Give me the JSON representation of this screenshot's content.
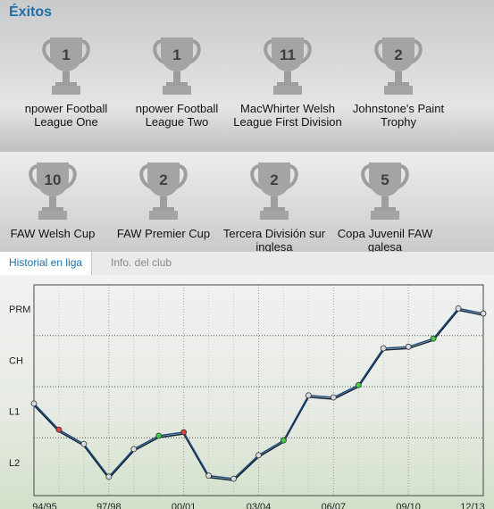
{
  "header": {
    "title": "Éxitos"
  },
  "trophies": [
    {
      "count": 1,
      "name": "npower Football League One"
    },
    {
      "count": 1,
      "name": "npower Football League Two"
    },
    {
      "count": 11,
      "name": "MacWhirter Welsh League First Division"
    },
    {
      "count": 2,
      "name": "Johnstone's Paint Trophy"
    },
    {
      "count": 10,
      "name": "FAW Welsh Cup"
    },
    {
      "count": 2,
      "name": "FAW Premier Cup"
    },
    {
      "count": 2,
      "name": "Tercera División sur inglesa"
    },
    {
      "count": 5,
      "name": "Copa Juvenil FAW galesa"
    }
  ],
  "tabs": [
    "Historial en liga",
    "Info. del club"
  ],
  "chart_data": {
    "type": "line",
    "categories": [
      "94/95",
      null,
      null,
      "97/98",
      null,
      null,
      "00/01",
      null,
      null,
      "03/04",
      null,
      null,
      "06/07",
      null,
      null,
      "09/10",
      null,
      null,
      "12/13"
    ],
    "values": [
      2.17,
      1.66,
      1.38,
      0.74,
      1.28,
      1.54,
      1.61,
      0.76,
      0.7,
      1.16,
      1.45,
      2.33,
      2.29,
      2.53,
      3.25,
      3.28,
      3.44,
      4.03,
      3.93
    ],
    "marker_colors": [
      null,
      "#e04040",
      null,
      null,
      null,
      "#40d040",
      "#e04040",
      null,
      null,
      null,
      "#40d040",
      null,
      null,
      "#40d040",
      null,
      null,
      "#40d040",
      null,
      null
    ],
    "color": "#1e4a7a",
    "ylim": [
      0.37,
      4.49
    ],
    "yticks": [
      {
        "value": 4,
        "label": "PRM"
      },
      {
        "value": 3,
        "label": "CH"
      },
      {
        "value": 2,
        "label": "L1"
      },
      {
        "value": 1,
        "label": "L2"
      }
    ],
    "ygrid": [
      3.5,
      2.5,
      1.5
    ],
    "grid": true
  }
}
